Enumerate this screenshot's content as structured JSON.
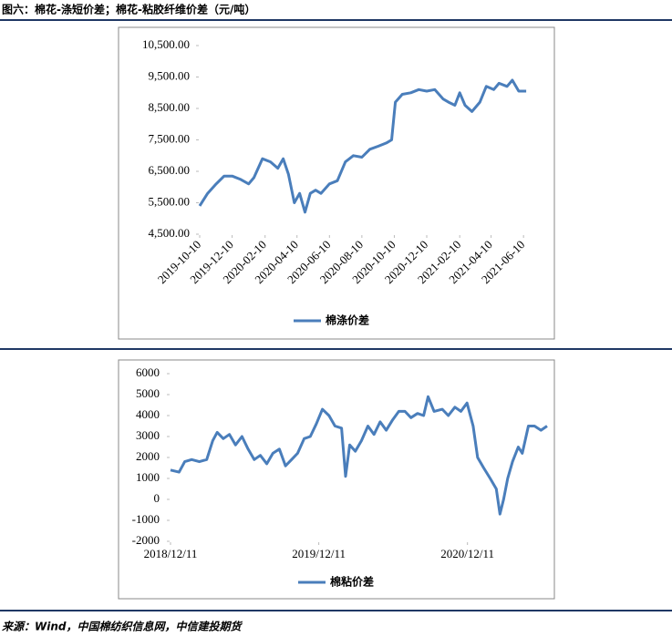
{
  "header": {
    "title": "图六：棉花-涤短价差；棉花-粘胶纤维价差（元/吨）"
  },
  "source": "来源：Wind，中国棉纺织信息网，中信建投期货",
  "chart_data": [
    {
      "type": "line",
      "x": [
        "2019-10-10",
        "2019-10-25",
        "2019-11-10",
        "2019-11-25",
        "2019-12-10",
        "2019-12-25",
        "2020-01-10",
        "2020-01-20",
        "2020-02-05",
        "2020-02-20",
        "2020-03-05",
        "2020-03-15",
        "2020-03-25",
        "2020-04-05",
        "2020-04-15",
        "2020-04-25",
        "2020-05-05",
        "2020-05-15",
        "2020-05-25",
        "2020-06-10",
        "2020-06-25",
        "2020-07-10",
        "2020-07-25",
        "2020-08-10",
        "2020-08-25",
        "2020-09-10",
        "2020-09-25",
        "2020-10-05",
        "2020-10-12",
        "2020-10-25",
        "2020-11-10",
        "2020-11-25",
        "2020-12-10",
        "2020-12-25",
        "2021-01-10",
        "2021-01-20",
        "2021-02-01",
        "2021-02-10",
        "2021-02-20",
        "2021-03-05",
        "2021-03-20",
        "2021-04-01",
        "2021-04-15",
        "2021-04-25",
        "2021-05-10",
        "2021-05-20",
        "2021-06-01",
        "2021-06-15"
      ],
      "series": [
        {
          "name": "棉涤价差",
          "color": "#4a7ebb",
          "values": [
            5400,
            5800,
            6100,
            6350,
            6350,
            6250,
            6100,
            6300,
            6900,
            6800,
            6600,
            6900,
            6400,
            5500,
            5800,
            5200,
            5800,
            5900,
            5800,
            6100,
            6200,
            6800,
            7000,
            6950,
            7200,
            7300,
            7400,
            7500,
            8700,
            8950,
            9000,
            9100,
            9050,
            9100,
            8800,
            8700,
            8600,
            9000,
            8600,
            8400,
            8700,
            9200,
            9100,
            9300,
            9200,
            9400,
            9050,
            9050
          ]
        }
      ],
      "xlim": [
        "2019-10-10",
        "2021-06-20"
      ],
      "xticks": [
        "2019-10-10",
        "2019-12-10",
        "2020-02-10",
        "2020-04-10",
        "2020-06-10",
        "2020-08-10",
        "2020-10-10",
        "2020-12-10",
        "2021-02-10",
        "2021-04-10",
        "2021-06-10"
      ],
      "ylim": [
        4500,
        10500
      ],
      "yticks": [
        {
          "value": 4500,
          "label": "4,500.00"
        },
        {
          "value": 5500,
          "label": "5,500.00"
        },
        {
          "value": 6500,
          "label": "6,500.00"
        },
        {
          "value": 7500,
          "label": "7,500.00"
        },
        {
          "value": 8500,
          "label": "8,500.00"
        },
        {
          "value": 9500,
          "label": "9,500.00"
        },
        {
          "value": 10500,
          "label": "10,500.00"
        }
      ]
    },
    {
      "type": "line",
      "x": [
        "2018/12/11",
        "2019/01/01",
        "2019/01/15",
        "2019/02/01",
        "2019/02/20",
        "2019/03/10",
        "2019/03/25",
        "2019/04/05",
        "2019/04/20",
        "2019/05/05",
        "2019/05/20",
        "2019/06/05",
        "2019/06/20",
        "2019/07/05",
        "2019/07/20",
        "2019/08/05",
        "2019/08/20",
        "2019/09/05",
        "2019/09/20",
        "2019/10/05",
        "2019/10/20",
        "2019/11/05",
        "2019/11/20",
        "2019/12/05",
        "2019/12/20",
        "2020/01/05",
        "2020/01/20",
        "2020/02/05",
        "2020/02/15",
        "2020/02/25",
        "2020/03/10",
        "2020/03/25",
        "2020/04/10",
        "2020/04/25",
        "2020/05/10",
        "2020/05/25",
        "2020/06/10",
        "2020/06/25",
        "2020/07/10",
        "2020/07/25",
        "2020/08/10",
        "2020/08/25",
        "2020/09/05",
        "2020/09/20",
        "2020/10/10",
        "2020/10/25",
        "2020/11/10",
        "2020/11/25",
        "2020/12/10",
        "2020/12/25",
        "2021/01/05",
        "2021/01/20",
        "2021/02/05",
        "2021/02/20",
        "2021/03/01",
        "2021/03/10",
        "2021/03/20",
        "2021/04/01",
        "2021/04/15",
        "2021/04/25",
        "2021/05/10",
        "2021/05/25",
        "2021/06/10",
        "2021/06/25"
      ],
      "series": [
        {
          "name": "棉粘价差",
          "color": "#4a7ebb",
          "values": [
            1400,
            1300,
            1800,
            1900,
            1800,
            1900,
            2800,
            3200,
            2900,
            3100,
            2600,
            3000,
            2400,
            1900,
            2100,
            1700,
            2200,
            2400,
            1600,
            1900,
            2200,
            2900,
            3000,
            3600,
            4300,
            4000,
            3500,
            3400,
            1100,
            2600,
            2300,
            2800,
            3500,
            3100,
            3700,
            3300,
            3800,
            4200,
            4200,
            3900,
            4100,
            4000,
            4900,
            4200,
            4300,
            4000,
            4400,
            4200,
            4600,
            3500,
            2000,
            1500,
            1000,
            500,
            -700,
            0,
            1000,
            1800,
            2500,
            2200,
            3500,
            3500,
            3300,
            3500
          ]
        }
      ],
      "xlim": [
        "2018/12/11",
        "2021/06/25"
      ],
      "xticks": [
        "2018/12/11",
        "2019/12/11",
        "2020/12/11"
      ],
      "ylim": [
        -2000,
        6000
      ],
      "yticks": [
        -2000,
        -1000,
        0,
        1000,
        2000,
        3000,
        4000,
        5000,
        6000
      ]
    }
  ]
}
